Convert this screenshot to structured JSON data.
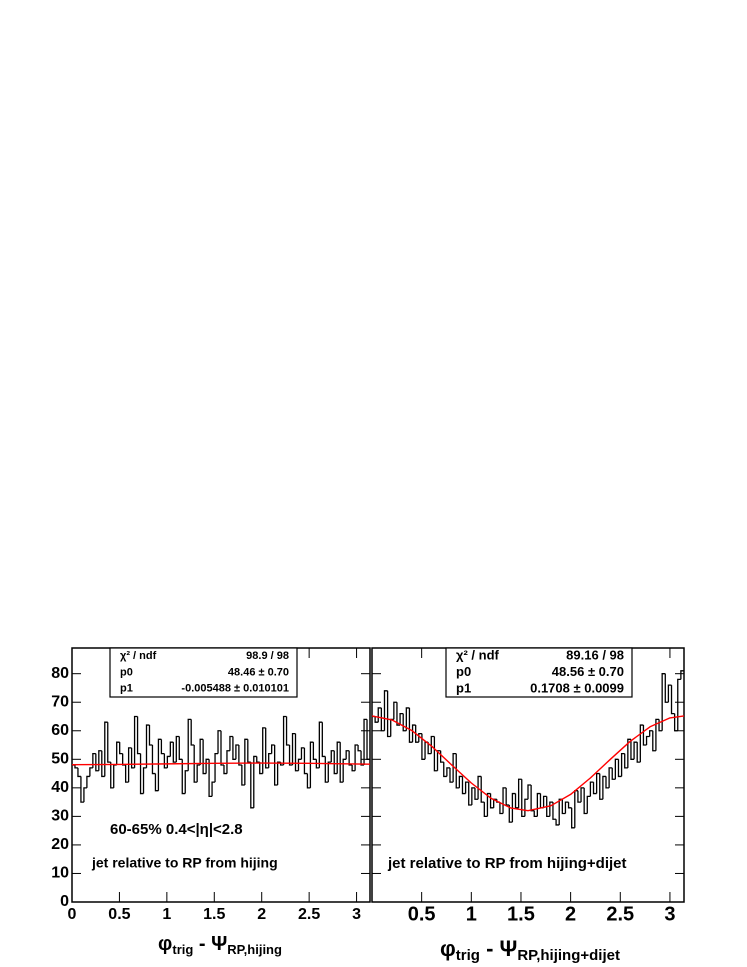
{
  "chart_data": [
    {
      "type": "histogram",
      "xlim": [
        0,
        3.1416
      ],
      "ylim": [
        0,
        89
      ],
      "xticks": [
        0,
        0.5,
        1,
        1.5,
        2,
        2.5,
        3
      ],
      "yticks": [
        0,
        10,
        20,
        30,
        40,
        50,
        60,
        70,
        80
      ],
      "color": "#000000",
      "bins": [
        0,
        0.0314,
        0.0628,
        0.0942,
        0.1257,
        0.1571,
        0.1885,
        0.2199,
        0.2513,
        0.2827,
        0.3142,
        0.3456,
        0.377,
        0.4084,
        0.4398,
        0.4712,
        0.5027,
        0.5341,
        0.5655,
        0.5969,
        0.6283,
        0.6597,
        0.6912,
        0.7226,
        0.754,
        0.7854,
        0.8168,
        0.8482,
        0.8796,
        0.9111,
        0.9425,
        0.9739,
        1.0053,
        1.0367,
        1.0681,
        1.0996,
        1.131,
        1.1624,
        1.1938,
        1.2252,
        1.2566,
        1.2881,
        1.3195,
        1.3509,
        1.3823,
        1.4137,
        1.4451,
        1.4765,
        1.508,
        1.5394,
        1.5708,
        1.6022,
        1.6336,
        1.665,
        1.6965,
        1.7279,
        1.7593,
        1.7907,
        1.8221,
        1.8535,
        1.885,
        1.9164,
        1.9478,
        1.9792,
        2.0106,
        2.042,
        2.0735,
        2.1049,
        2.1363,
        2.1677,
        2.1991,
        2.2305,
        2.2619,
        2.2934,
        2.3248,
        2.3562,
        2.3876,
        2.419,
        2.4504,
        2.4819,
        2.5133,
        2.5447,
        2.5761,
        2.6075,
        2.6389,
        2.6704,
        2.7018,
        2.7332,
        2.7646,
        2.796,
        2.8274,
        2.8588,
        2.8903,
        2.9217,
        2.9531,
        2.9845,
        3.0159,
        3.0473,
        3.0788,
        3.1102,
        3.1416
      ],
      "values": [
        48,
        47,
        44,
        35,
        40,
        44,
        47,
        52,
        46,
        53,
        44,
        63,
        49,
        40,
        48,
        56,
        52,
        48,
        42,
        54,
        47,
        65,
        52,
        38,
        47,
        62,
        55,
        45,
        39,
        57,
        52,
        47,
        51,
        56,
        49,
        58,
        50,
        38,
        46,
        64,
        55,
        42,
        48,
        57,
        45,
        50,
        37,
        42,
        52,
        60,
        48,
        45,
        53,
        58,
        50,
        55,
        48,
        41,
        57,
        49,
        33,
        51,
        49,
        45,
        61,
        47,
        52,
        55,
        41,
        49,
        48,
        65,
        55,
        48,
        59,
        46,
        50,
        54,
        45,
        40,
        56,
        50,
        47,
        63,
        51,
        42,
        49,
        53,
        45,
        56,
        42,
        50,
        53,
        48,
        46,
        55,
        53,
        48,
        64,
        50
      ],
      "fit_color": "#ff0000",
      "fit_x": [
        0,
        0.5,
        1,
        1.5,
        2,
        2.5,
        3.1416
      ],
      "fit_y": [
        48.1,
        48.2,
        48.4,
        48.6,
        48.7,
        48.6,
        48.3
      ],
      "stats": [
        {
          "name": "χ² / ndf",
          "value": "98.9 / 98"
        },
        {
          "name": "p0",
          "value": "48.46 ± 0.70"
        },
        {
          "name": "p1",
          "value": "-0.005488 ± 0.010101"
        }
      ],
      "annotations": [
        "60-65% 0.4<|η|<2.8",
        "jet relative to RP from hijing"
      ],
      "xlabel": [
        {
          "text": "φ"
        },
        {
          "text": "trig",
          "sub": true
        },
        {
          "text": " - Ψ"
        },
        {
          "text": "RP,hijing",
          "sub": true
        }
      ]
    },
    {
      "type": "histogram",
      "xlim": [
        0,
        3.1416
      ],
      "ylim": [
        0,
        89
      ],
      "xticks": [
        0.5,
        1,
        1.5,
        2,
        2.5,
        3
      ],
      "yticks": [
        0,
        10,
        20,
        30,
        40,
        50,
        60,
        70,
        80
      ],
      "color": "#000000",
      "bins": [
        0,
        0.0314,
        0.0628,
        0.0942,
        0.1257,
        0.1571,
        0.1885,
        0.2199,
        0.2513,
        0.2827,
        0.3142,
        0.3456,
        0.377,
        0.4084,
        0.4398,
        0.4712,
        0.5027,
        0.5341,
        0.5655,
        0.5969,
        0.6283,
        0.6597,
        0.6912,
        0.7226,
        0.754,
        0.7854,
        0.8168,
        0.8482,
        0.8796,
        0.9111,
        0.9425,
        0.9739,
        1.0053,
        1.0367,
        1.0681,
        1.0996,
        1.131,
        1.1624,
        1.1938,
        1.2252,
        1.2566,
        1.2881,
        1.3195,
        1.3509,
        1.3823,
        1.4137,
        1.4451,
        1.4765,
        1.508,
        1.5394,
        1.5708,
        1.6022,
        1.6336,
        1.665,
        1.6965,
        1.7279,
        1.7593,
        1.7907,
        1.8221,
        1.8535,
        1.885,
        1.9164,
        1.9478,
        1.9792,
        2.0106,
        2.042,
        2.0735,
        2.1049,
        2.1363,
        2.1677,
        2.1991,
        2.2305,
        2.2619,
        2.2934,
        2.3248,
        2.3562,
        2.3876,
        2.419,
        2.4504,
        2.4819,
        2.5133,
        2.5447,
        2.5761,
        2.6075,
        2.6389,
        2.6704,
        2.7018,
        2.7332,
        2.7646,
        2.796,
        2.8274,
        2.8588,
        2.8903,
        2.9217,
        2.9531,
        2.9845,
        3.0159,
        3.0473,
        3.0788,
        3.1102,
        3.1416
      ],
      "values": [
        65,
        63,
        68,
        60,
        74,
        58,
        64,
        70,
        62,
        66,
        60,
        68,
        56,
        62,
        56,
        59,
        50,
        56,
        52,
        58,
        46,
        53,
        49,
        44,
        47,
        42,
        52,
        40,
        44,
        38,
        42,
        34,
        40,
        36,
        44,
        35,
        30,
        38,
        33,
        36,
        35,
        31,
        40,
        34,
        28,
        38,
        33,
        43,
        30,
        36,
        41,
        32,
        30,
        38,
        33,
        37,
        30,
        35,
        29,
        27,
        36,
        31,
        35,
        33,
        26,
        39,
        35,
        40,
        31,
        37,
        42,
        38,
        45,
        36,
        44,
        40,
        47,
        43,
        50,
        44,
        52,
        47,
        57,
        50,
        56,
        49,
        62,
        55,
        58,
        60,
        53,
        64,
        60,
        80,
        70,
        76,
        66,
        60,
        78,
        81
      ],
      "fit_color": "#ff0000",
      "fit_x": [
        0,
        0.2,
        0.4,
        0.6,
        0.8,
        1.0,
        1.2,
        1.4,
        1.5708,
        1.8,
        2.0,
        2.2,
        2.4,
        2.6,
        2.8,
        3.0,
        3.1416
      ],
      "fit_y": [
        65.2,
        63.8,
        60.1,
        54.6,
        48.1,
        41.7,
        36.3,
        32.9,
        32.0,
        33.7,
        37.7,
        43.5,
        50.0,
        56.3,
        61.4,
        64.5,
        65.2
      ],
      "stats": [
        {
          "name": "χ² / ndf",
          "value": "89.16 / 98"
        },
        {
          "name": "p0",
          "value": "48.56 ± 0.70"
        },
        {
          "name": "p1",
          "value": "0.1708 ± 0.0099"
        }
      ],
      "annotations": [
        "jet relative to RP from hijing+dijet"
      ],
      "xlabel": [
        {
          "text": "φ"
        },
        {
          "text": "trig",
          "sub": true
        },
        {
          "text": " - Ψ"
        },
        {
          "text": "RP,hijing+dijet",
          "sub": true
        }
      ]
    }
  ]
}
